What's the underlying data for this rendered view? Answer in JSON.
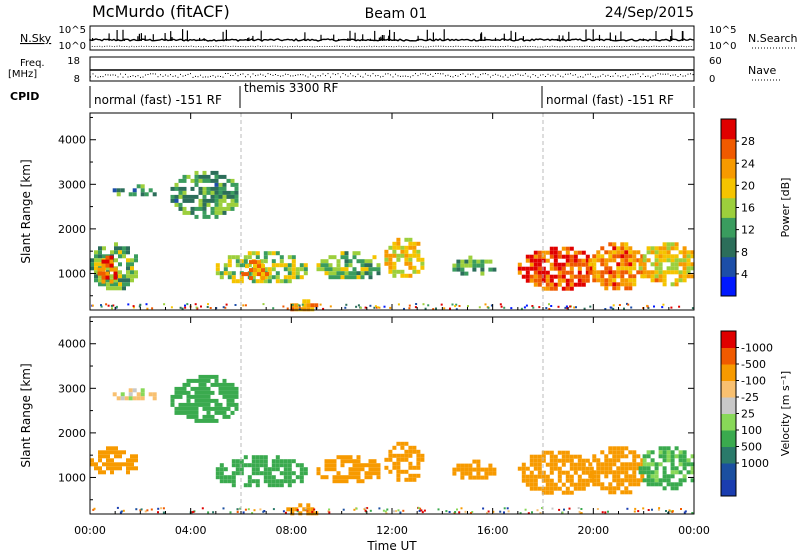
{
  "header": {
    "title": "McMurdo (fitACF)",
    "beam": "Beam 01",
    "date": "24/Sep/2015"
  },
  "strip1": {
    "left_label": "N.Sky",
    "y_top": "10^5",
    "y_bottom": "10^0",
    "right_label": "N.Search",
    "right_top": "10^5",
    "right_bottom": "10^0"
  },
  "strip2": {
    "left_label": "Freq.",
    "left_unit": "[MHz]",
    "y_top": "18",
    "y_bottom": "8",
    "right_label": "Nave",
    "right_top": "60",
    "right_bottom": "0"
  },
  "cpid": {
    "label": "CPID",
    "segments": [
      {
        "start_hour": 0,
        "end_hour": 6,
        "text": "normal (fast) -151 RF"
      },
      {
        "start_hour": 6,
        "end_hour": 18,
        "text": "themis 3300 RF"
      },
      {
        "start_hour": 18,
        "end_hour": 24,
        "text": "normal (fast) -151 RF"
      }
    ]
  },
  "colors": {
    "power": [
      "#0018ff",
      "#1c4ea8",
      "#2c6e5a",
      "#3a9c5e",
      "#9ccf3c",
      "#f5c400",
      "#f79a00",
      "#f05a00",
      "#e00000"
    ],
    "velocity": [
      "#e00000",
      "#f05a00",
      "#f79a00",
      "#f8c070",
      "#c8c8c8",
      "#88d858",
      "#3aaa4e",
      "#2a7a6a",
      "#1b4fa0",
      "#1a3db0"
    ]
  },
  "chart_data": [
    {
      "type": "heatmap",
      "quantity": "Power",
      "xlabel": "Time UT",
      "ylabel": "Slant Range [km]",
      "xlim": [
        0,
        24
      ],
      "ylim": [
        180,
        4600
      ],
      "x_ticks": [
        "00:00",
        "04:00",
        "08:00",
        "12:00",
        "16:00",
        "20:00",
        "00:00"
      ],
      "y_ticks": [
        1000,
        2000,
        3000,
        4000
      ],
      "colorbar": {
        "label": "Power [dB]",
        "ticks": [
          4,
          8,
          12,
          16,
          20,
          24,
          28
        ],
        "range": [
          0,
          32
        ]
      },
      "echo_regions": [
        {
          "t_start": 0.0,
          "t_end": 1.8,
          "r_low": 700,
          "r_high": 1700,
          "value": 14
        },
        {
          "t_start": 0.3,
          "t_end": 1.0,
          "r_low": 800,
          "r_high": 1400,
          "value": 26
        },
        {
          "t_start": 0.9,
          "t_end": 2.6,
          "r_low": 2750,
          "r_high": 3000,
          "value": 10
        },
        {
          "t_start": 3.2,
          "t_end": 5.8,
          "r_low": 2300,
          "r_high": 3300,
          "value": 12
        },
        {
          "t_start": 5.0,
          "t_end": 8.5,
          "r_low": 800,
          "r_high": 1500,
          "value": 16
        },
        {
          "t_start": 6.0,
          "t_end": 7.0,
          "r_low": 900,
          "r_high": 1300,
          "value": 24
        },
        {
          "t_start": 7.8,
          "t_end": 9.0,
          "r_low": 200,
          "r_high": 420,
          "value": 24
        },
        {
          "t_start": 9.0,
          "t_end": 11.5,
          "r_low": 900,
          "r_high": 1500,
          "value": 14
        },
        {
          "t_start": 11.7,
          "t_end": 13.2,
          "r_low": 950,
          "r_high": 1800,
          "value": 20
        },
        {
          "t_start": 14.4,
          "t_end": 16.0,
          "r_low": 1000,
          "r_high": 1400,
          "value": 12
        },
        {
          "t_start": 17.0,
          "t_end": 20.0,
          "r_low": 700,
          "r_high": 1600,
          "value": 28
        },
        {
          "t_start": 19.8,
          "t_end": 22.0,
          "r_low": 700,
          "r_high": 1700,
          "value": 24
        },
        {
          "t_start": 21.8,
          "t_end": 24.0,
          "r_low": 800,
          "r_high": 1700,
          "value": 20
        }
      ]
    },
    {
      "type": "heatmap",
      "quantity": "Velocity",
      "xlabel": "Time UT",
      "ylabel": "Slant Range [km]",
      "xlim": [
        0,
        24
      ],
      "ylim": [
        180,
        4600
      ],
      "x_ticks": [
        "00:00",
        "04:00",
        "08:00",
        "12:00",
        "16:00",
        "20:00",
        "00:00"
      ],
      "y_ticks": [
        1000,
        2000,
        3000,
        4000
      ],
      "colorbar": {
        "label": "Velocity [m s⁻¹]",
        "ticks": [
          -1000,
          -500,
          -100,
          -25,
          25,
          100,
          500,
          1000
        ]
      },
      "echo_regions": [
        {
          "t_start": 0.0,
          "t_end": 1.8,
          "r_low": 1100,
          "r_high": 1700,
          "value": -300
        },
        {
          "t_start": 0.9,
          "t_end": 2.6,
          "r_low": 2750,
          "r_high": 3000,
          "value": 0
        },
        {
          "t_start": 3.2,
          "t_end": 5.8,
          "r_low": 2300,
          "r_high": 3300,
          "value": 200
        },
        {
          "t_start": 5.0,
          "t_end": 8.5,
          "r_low": 800,
          "r_high": 1500,
          "value": 200
        },
        {
          "t_start": 7.8,
          "t_end": 9.0,
          "r_low": 200,
          "r_high": 420,
          "value": -300
        },
        {
          "t_start": 9.0,
          "t_end": 11.5,
          "r_low": 900,
          "r_high": 1500,
          "value": -300
        },
        {
          "t_start": 11.7,
          "t_end": 13.2,
          "r_low": 950,
          "r_high": 1800,
          "value": -300
        },
        {
          "t_start": 14.4,
          "t_end": 16.0,
          "r_low": 1000,
          "r_high": 1400,
          "value": -200
        },
        {
          "t_start": 17.0,
          "t_end": 20.0,
          "r_low": 700,
          "r_high": 1600,
          "value": -300
        },
        {
          "t_start": 19.8,
          "t_end": 22.0,
          "r_low": 700,
          "r_high": 1700,
          "value": -300
        },
        {
          "t_start": 21.8,
          "t_end": 24.0,
          "r_low": 800,
          "r_high": 1700,
          "value": 150
        }
      ]
    }
  ]
}
